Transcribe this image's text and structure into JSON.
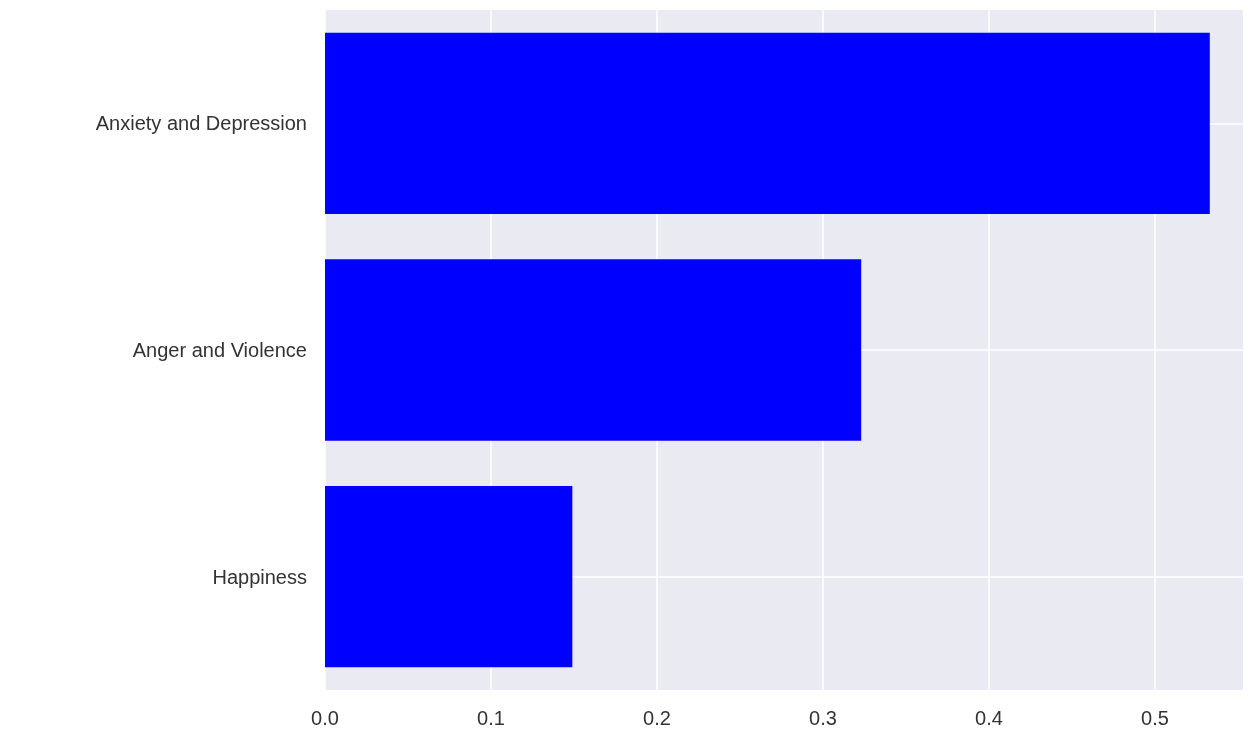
{
  "chart_data": {
    "type": "bar",
    "orientation": "horizontal",
    "categories": [
      "Anxiety and Depression",
      "Anger and Violence",
      "Happiness"
    ],
    "values": [
      0.533,
      0.323,
      0.149
    ],
    "color": "#0000ff",
    "xlim": [
      0,
      0.553
    ],
    "xticks": [
      {
        "value": 0,
        "label": "0.0"
      },
      0.1,
      0.2,
      0.3,
      0.4,
      0.5
    ],
    "grid": true
  }
}
